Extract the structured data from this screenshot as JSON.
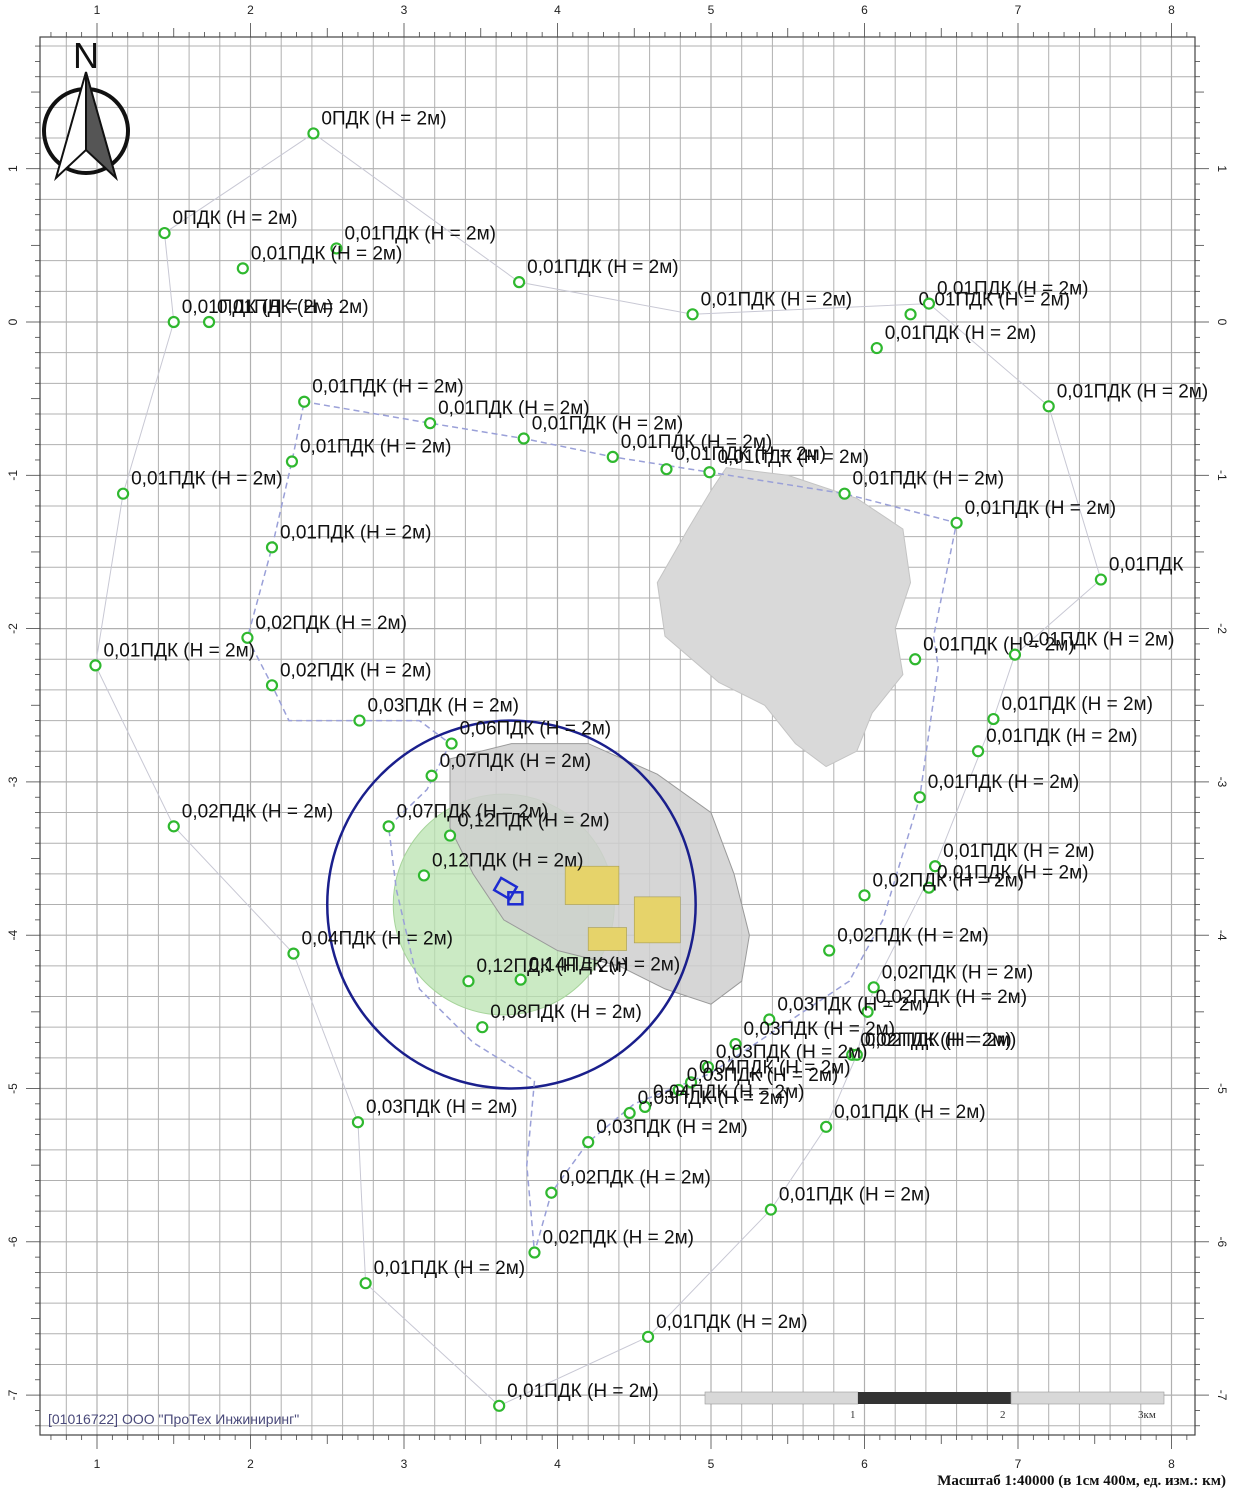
{
  "north_label": "N",
  "copyright": "[01016722] ООО \"ПроТех Инжиниринг\"",
  "scale_caption": "Масштаб 1:40000 (в 1см 400м, ед. изм.: км)",
  "scale_bar_labels": [
    "1",
    "2",
    "3км"
  ],
  "x_axis_labels": [
    "1",
    "2",
    "3",
    "4",
    "5",
    "6",
    "7",
    "8"
  ],
  "y_axis_labels": [
    "1",
    "0",
    "-1",
    "-2",
    "-3",
    "-4",
    "-5",
    "-6",
    "-7"
  ],
  "colors": {
    "grid": "#b0b0b0",
    "point": "#2fb82f",
    "circle": "#1a1f8c",
    "zone_fill": "#b9e3b0",
    "lake": "#d9d9d9",
    "boundary": "#9aa0d8"
  },
  "points": [
    {
      "label": "0ПДК (Н = 2м)",
      "x": 2.41,
      "y": 1.23
    },
    {
      "label": "0ПДК (Н = 2м)",
      "x": 1.44,
      "y": 0.58
    },
    {
      "label": "0,01ПДК (Н = 2м)",
      "x": 2.56,
      "y": 0.48
    },
    {
      "label": "0,01ПДК (Н = 2м)",
      "x": 1.95,
      "y": 0.35
    },
    {
      "label": "0,01ПДК (Н = 2м)",
      "x": 1.5,
      "y": 0.0
    },
    {
      "label": "0,01ПДК (Н = 2м)",
      "x": 1.73,
      "y": 0.0
    },
    {
      "label": "0,01ПДК (Н = 2м)",
      "x": 3.75,
      "y": 0.26
    },
    {
      "label": "0,01ПДК (Н = 2м)",
      "x": 4.88,
      "y": 0.05
    },
    {
      "label": "0,01ПДК (Н = 2м)",
      "x": 6.3,
      "y": 0.05
    },
    {
      "label": "0,01ПДК (Н = 2м)",
      "x": 6.42,
      "y": 0.12
    },
    {
      "label": "0,01ПДК (Н = 2м)",
      "x": 6.08,
      "y": -0.17
    },
    {
      "label": "0,01ПДК (Н = 2м)",
      "x": 7.2,
      "y": -0.55
    },
    {
      "label": "0,01ПДК (Н = 2м)",
      "x": 2.35,
      "y": -0.52
    },
    {
      "label": "0,01ПДК (Н = 2м)",
      "x": 3.17,
      "y": -0.66
    },
    {
      "label": "0,01ПДК (Н = 2м)",
      "x": 3.78,
      "y": -0.76
    },
    {
      "label": "0,01ПДК (Н = 2м)",
      "x": 4.36,
      "y": -0.88
    },
    {
      "label": "0,01ПДК (Н = 2м)",
      "x": 4.71,
      "y": -0.96
    },
    {
      "label": "0,01ПДК (Н = 2м)",
      "x": 4.99,
      "y": -0.98
    },
    {
      "label": "0,01ПДК (Н = 2м)",
      "x": 2.27,
      "y": -0.91
    },
    {
      "label": "0,01ПДК (Н = 2м)",
      "x": 1.17,
      "y": -1.12
    },
    {
      "label": "0,01ПДК (Н = 2м)",
      "x": 5.87,
      "y": -1.12
    },
    {
      "label": "0,01ПДК (Н = 2м)",
      "x": 6.6,
      "y": -1.31
    },
    {
      "label": "0,01ПДК (Н = 2м)",
      "x": 2.14,
      "y": -1.47
    },
    {
      "label": "0,01ПДК",
      "x": 7.54,
      "y": -1.68
    },
    {
      "label": "0,02ПДК (Н = 2м)",
      "x": 1.98,
      "y": -2.06
    },
    {
      "label": "0,01ПДК (Н = 2м)",
      "x": 0.99,
      "y": -2.24
    },
    {
      "label": "0,01ПДК (Н = 2м)",
      "x": 6.33,
      "y": -2.2
    },
    {
      "label": "0,01ПДК (Н = 2м)",
      "x": 6.98,
      "y": -2.17
    },
    {
      "label": "0,02ПДК (Н = 2м)",
      "x": 2.14,
      "y": -2.37
    },
    {
      "label": "0,03ПДК (Н = 2м)",
      "x": 2.71,
      "y": -2.6
    },
    {
      "label": "0,01ПДК (Н = 2м)",
      "x": 6.84,
      "y": -2.59
    },
    {
      "label": "0,01ПДК (Н = 2м)",
      "x": 6.74,
      "y": -2.8
    },
    {
      "label": "0,06ПДК (Н = 2м)",
      "x": 3.31,
      "y": -2.75
    },
    {
      "label": "0,07ПДК (Н = 2м)",
      "x": 3.18,
      "y": -2.96
    },
    {
      "label": "0,01ПДК (Н = 2м)",
      "x": 6.36,
      "y": -3.1
    },
    {
      "label": "0,02ПДК (Н = 2м)",
      "x": 1.5,
      "y": -3.29
    },
    {
      "label": "0,07ПДК (Н = 2м)",
      "x": 2.9,
      "y": -3.29
    },
    {
      "label": "0,12ПДК (Н = 2м)",
      "x": 3.3,
      "y": -3.35
    },
    {
      "label": "0,12ПДК (Н = 2м)",
      "x": 3.13,
      "y": -3.61
    },
    {
      "label": "0,01ПДК (Н = 2м)",
      "x": 6.46,
      "y": -3.55
    },
    {
      "label": "0,01ПДК (Н = 2м)",
      "x": 6.42,
      "y": -3.69
    },
    {
      "label": "0,02ПДК (Н = 2м)",
      "x": 6.0,
      "y": -3.74
    },
    {
      "label": "0,04ПДК (Н = 2м)",
      "x": 2.28,
      "y": -4.12
    },
    {
      "label": "0,02ПДК (Н = 2м)",
      "x": 5.77,
      "y": -4.1
    },
    {
      "label": "0,12ПДК (Н = 2м)",
      "x": 3.42,
      "y": -4.3
    },
    {
      "label": "0,14ПДК (Н = 2м)",
      "x": 3.76,
      "y": -4.29
    },
    {
      "label": "0,02ПДК (Н = 2м)",
      "x": 6.06,
      "y": -4.34
    },
    {
      "label": "0,02ПДК (Н = 2м)",
      "x": 6.02,
      "y": -4.5
    },
    {
      "label": "0,03ПДК (Н = 2м)",
      "x": 5.38,
      "y": -4.55
    },
    {
      "label": "0,08ПДК (Н = 2м)",
      "x": 3.51,
      "y": -4.6
    },
    {
      "label": "0,03ПДК (Н = 2м)",
      "x": 5.16,
      "y": -4.71
    },
    {
      "label": "0,02ПДК (Н = 2м)",
      "x": 5.92,
      "y": -4.78
    },
    {
      "label": "0,02ПДК (Н = 2м)",
      "x": 5.95,
      "y": -4.78
    },
    {
      "label": "0,03ПДК (Н = 2м)",
      "x": 4.98,
      "y": -4.86
    },
    {
      "label": "0,04ПДК (Н = 2м)",
      "x": 4.87,
      "y": -4.96
    },
    {
      "label": "0,03ПДК (Н = 2м)",
      "x": 4.79,
      "y": -5.01
    },
    {
      "label": "0,04ПДК (Н = 2м)",
      "x": 4.57,
      "y": -5.12
    },
    {
      "label": "0,03ПДК (Н = 2м)",
      "x": 4.47,
      "y": -5.16
    },
    {
      "label": "0,03ПДК (Н = 2м)",
      "x": 2.7,
      "y": -5.22
    },
    {
      "label": "0,03ПДК (Н = 2м)",
      "x": 4.2,
      "y": -5.35
    },
    {
      "label": "0,01ПДК (Н = 2м)",
      "x": 5.75,
      "y": -5.25
    },
    {
      "label": "0,02ПДК (Н = 2м)",
      "x": 3.96,
      "y": -5.68
    },
    {
      "label": "0,01ПДК (Н = 2м)",
      "x": 5.39,
      "y": -5.79
    },
    {
      "label": "0,02ПДК (Н = 2м)",
      "x": 3.85,
      "y": -6.07
    },
    {
      "label": "0,01ПДК (Н = 2м)",
      "x": 2.75,
      "y": -6.27
    },
    {
      "label": "0,01ПДК (Н = 2м)",
      "x": 4.59,
      "y": -6.62
    },
    {
      "label": "0,01ПДК (Н = 2м)",
      "x": 3.62,
      "y": -7.07
    }
  ],
  "calc_boundary": [
    [
      2.35,
      -0.52
    ],
    [
      3.17,
      -0.66
    ],
    [
      3.78,
      -0.76
    ],
    [
      4.36,
      -0.88
    ],
    [
      4.99,
      -0.98
    ],
    [
      5.87,
      -1.12
    ],
    [
      6.6,
      -1.31
    ],
    [
      6.45,
      -2.05
    ],
    [
      6.48,
      -2.25
    ],
    [
      6.36,
      -3.1
    ],
    [
      6.12,
      -3.9
    ],
    [
      5.9,
      -4.3
    ],
    [
      5.6,
      -4.5
    ],
    [
      5.0,
      -4.9
    ],
    [
      4.5,
      -5.1
    ],
    [
      4.2,
      -5.35
    ],
    [
      3.96,
      -5.68
    ],
    [
      3.85,
      -6.07
    ],
    [
      3.8,
      -5.5
    ],
    [
      3.85,
      -4.95
    ],
    [
      3.45,
      -4.7
    ],
    [
      3.1,
      -4.35
    ],
    [
      2.95,
      -3.7
    ],
    [
      2.9,
      -3.29
    ],
    [
      3.15,
      -3.05
    ],
    [
      3.3,
      -2.75
    ],
    [
      3.1,
      -2.6
    ],
    [
      2.25,
      -2.6
    ],
    [
      2.14,
      -2.37
    ],
    [
      1.98,
      -2.06
    ],
    [
      2.14,
      -1.47
    ],
    [
      2.27,
      -0.91
    ],
    [
      2.35,
      -0.52
    ]
  ],
  "outer_boundary": [
    [
      1.44,
      0.58
    ],
    [
      2.41,
      1.23
    ],
    [
      3.75,
      0.26
    ],
    [
      4.88,
      0.05
    ],
    [
      6.42,
      0.12
    ],
    [
      7.2,
      -0.55
    ],
    [
      7.54,
      -1.68
    ],
    [
      6.98,
      -2.17
    ],
    [
      6.84,
      -2.59
    ],
    [
      6.46,
      -3.55
    ],
    [
      6.06,
      -4.34
    ],
    [
      5.95,
      -4.78
    ],
    [
      5.75,
      -5.25
    ],
    [
      5.39,
      -5.79
    ],
    [
      4.59,
      -6.62
    ],
    [
      3.62,
      -7.07
    ],
    [
      2.75,
      -6.27
    ],
    [
      2.7,
      -5.22
    ],
    [
      2.28,
      -4.12
    ],
    [
      1.5,
      -3.29
    ],
    [
      0.99,
      -2.24
    ],
    [
      1.17,
      -1.12
    ],
    [
      1.5,
      0.0
    ],
    [
      1.44,
      0.58
    ]
  ],
  "lake": [
    [
      5.1,
      -0.95
    ],
    [
      5.5,
      -1.0
    ],
    [
      5.95,
      -1.15
    ],
    [
      6.25,
      -1.35
    ],
    [
      6.3,
      -1.7
    ],
    [
      6.2,
      -2.0
    ],
    [
      6.25,
      -2.3
    ],
    [
      6.05,
      -2.55
    ],
    [
      5.95,
      -2.8
    ],
    [
      5.75,
      -2.9
    ],
    [
      5.55,
      -2.75
    ],
    [
      5.35,
      -2.5
    ],
    [
      5.05,
      -2.35
    ],
    [
      4.7,
      -2.05
    ],
    [
      4.65,
      -1.7
    ],
    [
      4.85,
      -1.35
    ],
    [
      5.0,
      -1.1
    ],
    [
      5.1,
      -0.95
    ]
  ],
  "industrial_site": [
    [
      3.3,
      -2.85
    ],
    [
      3.7,
      -2.75
    ],
    [
      4.2,
      -2.75
    ],
    [
      4.65,
      -2.95
    ],
    [
      5.0,
      -3.2
    ],
    [
      5.15,
      -3.6
    ],
    [
      5.25,
      -4.0
    ],
    [
      5.2,
      -4.3
    ],
    [
      5.0,
      -4.45
    ],
    [
      4.7,
      -4.35
    ],
    [
      4.4,
      -4.2
    ],
    [
      4.0,
      -4.1
    ],
    [
      3.65,
      -3.9
    ],
    [
      3.45,
      -3.6
    ],
    [
      3.3,
      -3.3
    ],
    [
      3.3,
      -2.85
    ]
  ],
  "sanitary_zone": {
    "cx": 3.7,
    "cy": -3.8,
    "r": 1.2
  },
  "impact_zone": {
    "cx": 3.65,
    "cy": -3.8,
    "r": 0.72
  }
}
